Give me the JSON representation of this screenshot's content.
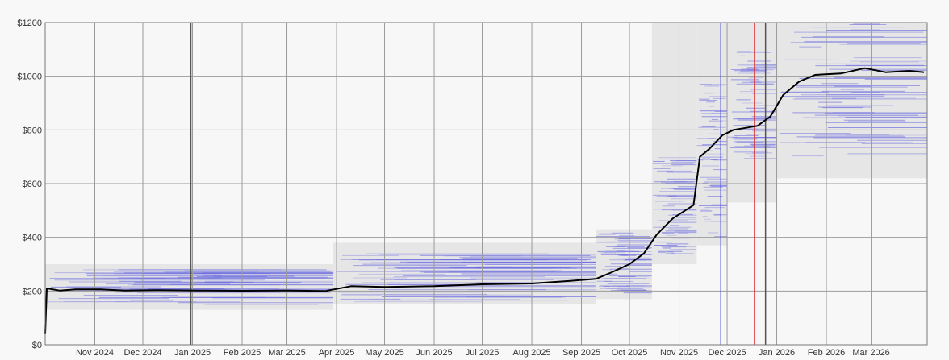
{
  "chart_data": {
    "type": "line",
    "title": "",
    "xlabel": "",
    "ylabel": "",
    "ylim": [
      0,
      1200
    ],
    "y_ticks": [
      "$0",
      "$200",
      "$400",
      "$600",
      "$800",
      "$1000",
      "$1200"
    ],
    "y_tick_values": [
      0,
      200,
      400,
      600,
      800,
      1000,
      1200
    ],
    "x_range": [
      "2024-10-01",
      "2026-04-05"
    ],
    "x_ticks": [
      {
        "label": "Nov 2024",
        "date": "2024-11-01"
      },
      {
        "label": "Dec 2024",
        "date": "2024-12-01"
      },
      {
        "label": "Jan 2025",
        "date": "2025-01-01"
      },
      {
        "label": "Feb 2025",
        "date": "2025-02-01"
      },
      {
        "label": "Mar 2025",
        "date": "2025-03-01"
      },
      {
        "label": "Apr 2025",
        "date": "2025-04-01"
      },
      {
        "label": "May 2025",
        "date": "2025-05-01"
      },
      {
        "label": "Jun 2025",
        "date": "2025-06-01"
      },
      {
        "label": "Jul 2025",
        "date": "2025-07-01"
      },
      {
        "label": "Aug 2025",
        "date": "2025-08-01"
      },
      {
        "label": "Sep 2025",
        "date": "2025-09-01"
      },
      {
        "label": "Oct 2025",
        "date": "2025-10-01"
      },
      {
        "label": "Nov 2025",
        "date": "2025-11-01"
      },
      {
        "label": "Dec 2025",
        "date": "2025-12-01"
      },
      {
        "label": "Jan 2026",
        "date": "2026-01-01"
      },
      {
        "label": "Feb 2026",
        "date": "2026-02-01"
      },
      {
        "label": "Mar 2026",
        "date": "2026-03-01"
      }
    ],
    "grid": true,
    "colors": {
      "line": "#000000",
      "band": "#e6e6e6",
      "offers": "#6a6ae0",
      "vline_blue": "#3333cc",
      "vline_red": "#dd2222",
      "vline_dark": "#555555",
      "grid": "#9a9a9a"
    },
    "series": [
      {
        "values": [
          {
            "x": "2024-10-01",
            "y": 40
          },
          {
            "x": "2024-10-02",
            "y": 210
          },
          {
            "x": "2024-10-10",
            "y": 202
          },
          {
            "x": "2024-10-20",
            "y": 206
          },
          {
            "x": "2024-11-05",
            "y": 206
          },
          {
            "x": "2024-11-20",
            "y": 202
          },
          {
            "x": "2024-12-10",
            "y": 203
          },
          {
            "x": "2025-01-05",
            "y": 202
          },
          {
            "x": "2025-02-01",
            "y": 201
          },
          {
            "x": "2025-03-01",
            "y": 202
          },
          {
            "x": "2025-03-25",
            "y": 200
          },
          {
            "x": "2025-04-10",
            "y": 218
          },
          {
            "x": "2025-05-01",
            "y": 215
          },
          {
            "x": "2025-06-01",
            "y": 218
          },
          {
            "x": "2025-07-01",
            "y": 225
          },
          {
            "x": "2025-08-01",
            "y": 228
          },
          {
            "x": "2025-08-25",
            "y": 238
          },
          {
            "x": "2025-09-10",
            "y": 245
          },
          {
            "x": "2025-09-20",
            "y": 270
          },
          {
            "x": "2025-10-01",
            "y": 300
          },
          {
            "x": "2025-10-10",
            "y": 340
          },
          {
            "x": "2025-10-18",
            "y": 410
          },
          {
            "x": "2025-10-28",
            "y": 470
          },
          {
            "x": "2025-11-10",
            "y": 520
          },
          {
            "x": "2025-11-14",
            "y": 700
          },
          {
            "x": "2025-11-20",
            "y": 730
          },
          {
            "x": "2025-11-28",
            "y": 780
          },
          {
            "x": "2025-12-05",
            "y": 800
          },
          {
            "x": "2025-12-20",
            "y": 815
          },
          {
            "x": "2025-12-28",
            "y": 850
          },
          {
            "x": "2026-01-05",
            "y": 930
          },
          {
            "x": "2026-01-15",
            "y": 980
          },
          {
            "x": "2026-01-25",
            "y": 1005
          },
          {
            "x": "2026-02-10",
            "y": 1010
          },
          {
            "x": "2026-02-25",
            "y": 1030
          },
          {
            "x": "2026-03-10",
            "y": 1015
          },
          {
            "x": "2026-03-25",
            "y": 1020
          },
          {
            "x": "2026-04-03",
            "y": 1015
          }
        ]
      }
    ],
    "bands": [
      {
        "x": [
          "2024-10-01",
          "2025-03-30"
        ],
        "low": 130,
        "high": 300
      },
      {
        "x": [
          "2025-03-30",
          "2025-09-10"
        ],
        "low": 150,
        "high": 380
      },
      {
        "x": [
          "2025-09-10",
          "2025-10-15"
        ],
        "low": 170,
        "high": 430
      },
      {
        "x": [
          "2025-10-15",
          "2025-11-12"
        ],
        "low": 300,
        "high": 1200
      },
      {
        "x": [
          "2025-11-12",
          "2025-12-01"
        ],
        "low": 370,
        "high": 1200
      },
      {
        "x": [
          "2025-12-01",
          "2026-01-01"
        ],
        "low": 530,
        "high": 1200
      },
      {
        "x": [
          "2026-01-01",
          "2026-04-05"
        ],
        "low": 620,
        "high": 1200
      }
    ],
    "offer_bands": [
      {
        "x": [
          "2024-10-01",
          "2025-03-30"
        ],
        "low": 150,
        "high": 280
      },
      {
        "x": [
          "2025-03-30",
          "2025-09-10"
        ],
        "low": 160,
        "high": 340
      },
      {
        "x": [
          "2025-09-10",
          "2025-10-15"
        ],
        "low": 190,
        "high": 420
      },
      {
        "x": [
          "2025-10-15",
          "2025-11-12"
        ],
        "low": 340,
        "high": 700
      },
      {
        "x": [
          "2025-11-12",
          "2025-12-01"
        ],
        "low": 400,
        "high": 980
      },
      {
        "x": [
          "2025-12-01",
          "2026-01-01"
        ],
        "low": 680,
        "high": 1100
      },
      {
        "x": [
          "2026-01-01",
          "2026-04-05"
        ],
        "low": 700,
        "high": 1200
      }
    ],
    "vertical_lines": [
      {
        "date": "2024-12-31",
        "color": "vline_dark"
      },
      {
        "date": "2025-11-27",
        "color": "vline_blue"
      },
      {
        "date": "2025-12-18",
        "color": "vline_red"
      },
      {
        "date": "2025-12-25",
        "color": "vline_dark"
      }
    ]
  }
}
